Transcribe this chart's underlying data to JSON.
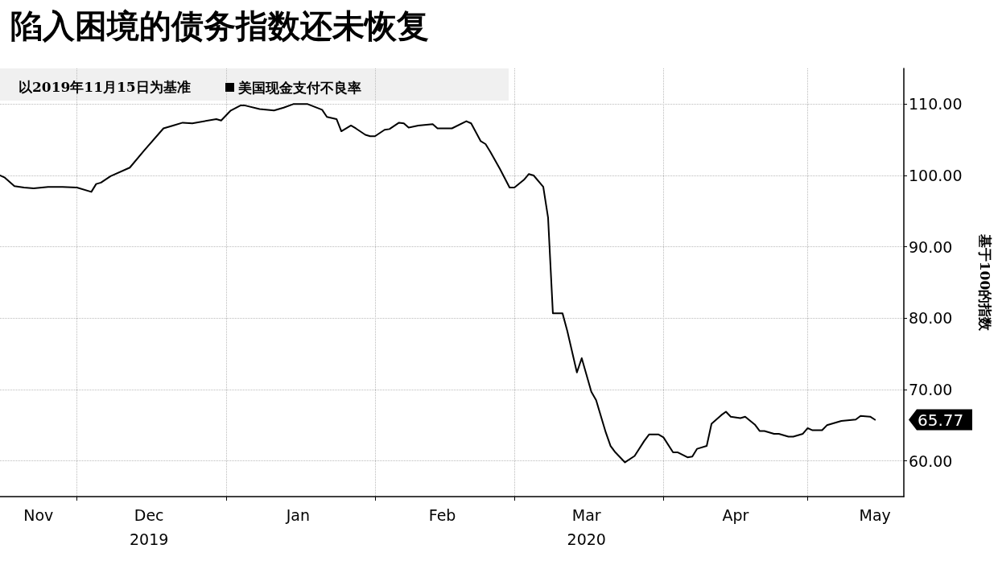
{
  "chart_data": {
    "type": "line",
    "title": "陷入困境的债务指数还未恢复",
    "subtitle": "以2019年11月15日为基准",
    "ylabel": "基于100的指数",
    "x": [
      "2019-11-15",
      "2019-11-16",
      "2019-11-18",
      "2019-11-20",
      "2019-11-22",
      "2019-11-25",
      "2019-11-28",
      "2019-12-01",
      "2019-12-04",
      "2019-12-05",
      "2019-12-06",
      "2019-12-08",
      "2019-12-12",
      "2019-12-15",
      "2019-12-19",
      "2019-12-21",
      "2019-12-23",
      "2019-12-25",
      "2019-12-30",
      "2019-12-31",
      "2020-01-02",
      "2020-01-04",
      "2020-01-05",
      "2020-01-08",
      "2020-01-11",
      "2020-01-13",
      "2020-01-15",
      "2020-01-18",
      "2020-01-21",
      "2020-01-22",
      "2020-01-24",
      "2020-01-25",
      "2020-01-27",
      "2020-01-28",
      "2020-01-30",
      "2020-01-31",
      "2020-02-01",
      "2020-02-03",
      "2020-02-04",
      "2020-02-06",
      "2020-02-07",
      "2020-02-08",
      "2020-02-10",
      "2020-02-13",
      "2020-02-14",
      "2020-02-17",
      "2020-02-20",
      "2020-02-21",
      "2020-02-23",
      "2020-02-24",
      "2020-02-25",
      "2020-02-27",
      "2020-02-29",
      "2020-03-01",
      "2020-03-03",
      "2020-03-04",
      "2020-03-05",
      "2020-03-07",
      "2020-03-08",
      "2020-03-09",
      "2020-03-11",
      "2020-03-12",
      "2020-03-14",
      "2020-03-15",
      "2020-03-17",
      "2020-03-18",
      "2020-03-20",
      "2020-03-21",
      "2020-03-22",
      "2020-03-24",
      "2020-03-26",
      "2020-03-28",
      "2020-03-29",
      "2020-03-31",
      "2020-04-01",
      "2020-04-03",
      "2020-04-04",
      "2020-04-06",
      "2020-04-07",
      "2020-04-08",
      "2020-04-10",
      "2020-04-11",
      "2020-04-13",
      "2020-04-14",
      "2020-04-15",
      "2020-04-17",
      "2020-04-18",
      "2020-04-20",
      "2020-04-21",
      "2020-04-22",
      "2020-04-24",
      "2020-04-25",
      "2020-04-27",
      "2020-04-28",
      "2020-04-30",
      "2020-05-01",
      "2020-05-02",
      "2020-05-04",
      "2020-05-05",
      "2020-05-08",
      "2020-05-11",
      "2020-05-12",
      "2020-05-14",
      "2020-05-15"
    ],
    "series": [
      {
        "name": "美国现金支付不良率",
        "color": "#000000",
        "values": [
          100.0,
          99.7,
          98.5,
          98.3,
          98.2,
          98.4,
          98.4,
          98.3,
          97.7,
          98.8,
          99.0,
          99.9,
          101.1,
          103.5,
          106.6,
          107.0,
          107.4,
          107.3,
          107.9,
          107.7,
          109.1,
          109.8,
          109.8,
          109.3,
          109.1,
          109.5,
          110.0,
          110.0,
          109.2,
          108.2,
          107.9,
          106.2,
          107.0,
          106.6,
          105.7,
          105.5,
          105.5,
          106.4,
          106.5,
          107.4,
          107.3,
          106.7,
          107.0,
          107.2,
          106.6,
          106.6,
          107.6,
          107.3,
          104.8,
          104.4,
          103.3,
          100.9,
          98.3,
          98.3,
          99.4,
          100.2,
          100.0,
          98.4,
          94.1,
          80.7,
          80.7,
          78.2,
          72.4,
          74.4,
          69.7,
          68.5,
          64.0,
          62.1,
          61.2,
          59.8,
          60.7,
          62.8,
          63.7,
          63.7,
          63.3,
          61.2,
          61.2,
          60.5,
          60.6,
          61.7,
          62.1,
          65.2,
          66.4,
          66.9,
          66.2,
          66.0,
          66.2,
          65.1,
          64.2,
          64.2,
          63.8,
          63.8,
          63.4,
          63.4,
          63.8,
          64.6,
          64.3,
          64.3,
          65.0,
          65.6,
          65.8,
          66.3,
          66.2,
          65.77
        ]
      }
    ],
    "xlim": [
      "2019-11-15",
      "2020-05-21"
    ],
    "xticks": [
      {
        "value": "2019-11-23",
        "label": "Nov"
      },
      {
        "value": "2019-12-01",
        "label": null
      },
      {
        "value": "2019-12-16",
        "label": "Dec\n2019"
      },
      {
        "value": "2020-01-01",
        "label": null
      },
      {
        "value": "2020-01-16",
        "label": "Jan"
      },
      {
        "value": "2020-02-01",
        "label": null
      },
      {
        "value": "2020-02-15",
        "label": "Feb"
      },
      {
        "value": "2020-03-01",
        "label": null
      },
      {
        "value": "2020-03-16",
        "label": "Mar\n2020"
      },
      {
        "value": "2020-04-01",
        "label": null
      },
      {
        "value": "2020-04-16",
        "label": "Apr"
      },
      {
        "value": "2020-05-01",
        "label": null
      },
      {
        "value": "2020-05-15",
        "label": "May"
      }
    ],
    "ylim": [
      55,
      115
    ],
    "yticks": [
      {
        "value": 60,
        "label": "60.00"
      },
      {
        "value": 70,
        "label": "70.00"
      },
      {
        "value": 80,
        "label": "80.00"
      },
      {
        "value": 90,
        "label": "90.00"
      },
      {
        "value": 100,
        "label": "100.00"
      },
      {
        "value": 110,
        "label": "110.00"
      }
    ],
    "annotations": [
      {
        "text": "65.77",
        "x": "2020-05-15",
        "y": 65.77
      }
    ],
    "grid": true,
    "legend": "top left",
    "marker": "none",
    "line_style": "solid"
  }
}
